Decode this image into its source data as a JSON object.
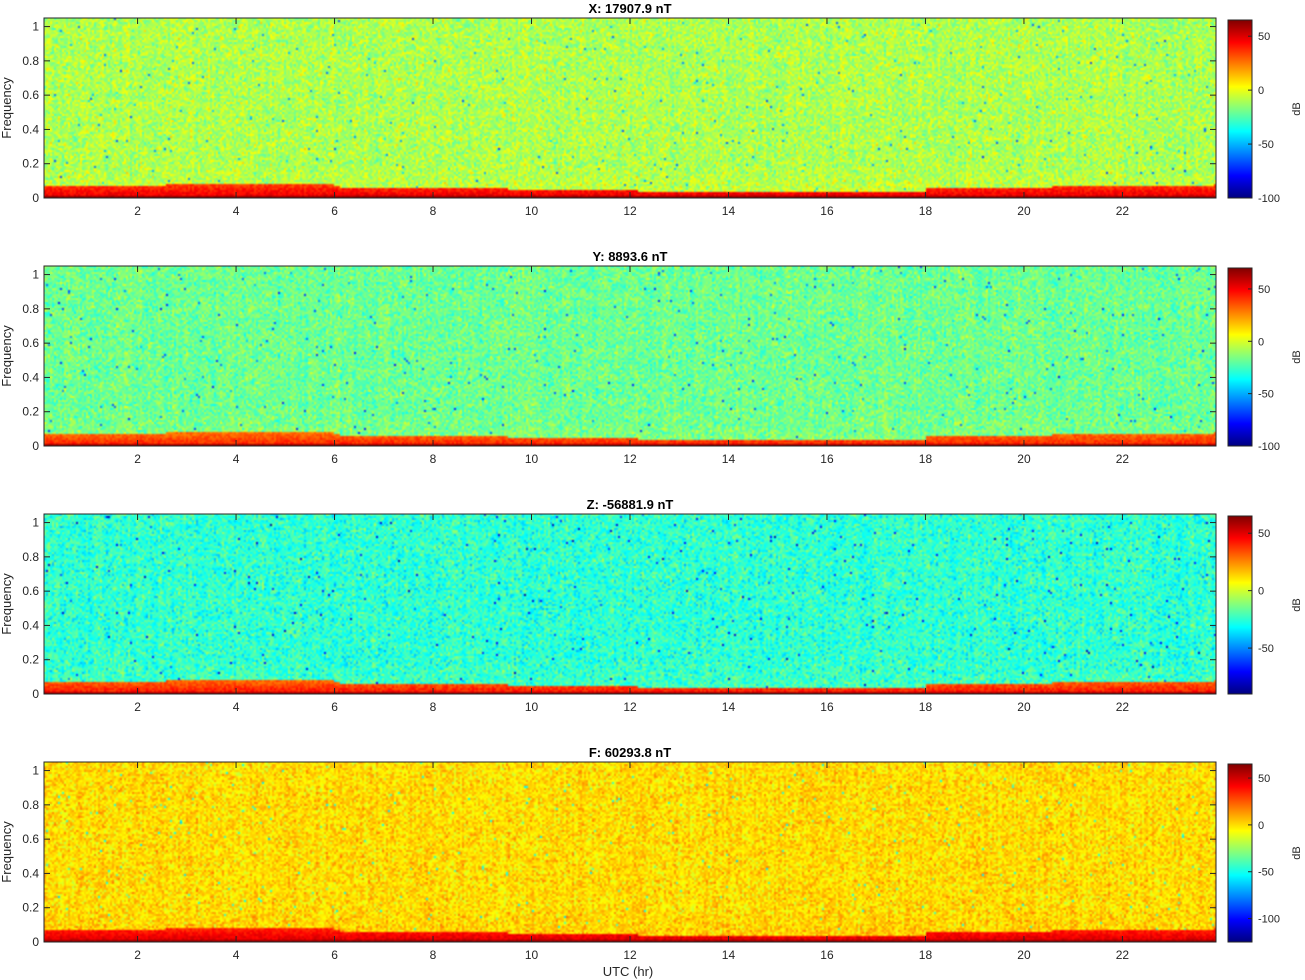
{
  "figure": {
    "xlabel": "UTC (hr)"
  },
  "chart_data": [
    {
      "type": "heatmap",
      "title": "X: 17907.9 nT",
      "xlabel": "",
      "ylabel": "Frequency",
      "xlim": [
        0.1,
        23.9
      ],
      "ylim": [
        0,
        1.05
      ],
      "xticks": [
        2,
        4,
        6,
        8,
        10,
        12,
        14,
        16,
        18,
        20,
        22
      ],
      "yticks": [
        0,
        0.2,
        0.4,
        0.6,
        0.8,
        1
      ],
      "colorbar": {
        "label": "dB",
        "range": [
          -100,
          65
        ],
        "ticks": [
          50,
          0,
          -50,
          -100
        ]
      },
      "colormap": "jet",
      "background_db": -10,
      "low_freq_band_db": 40,
      "bottom_line_db": 65
    },
    {
      "type": "heatmap",
      "title": "Y: 8893.6 nT",
      "xlabel": "",
      "ylabel": "Frequency",
      "xlim": [
        0.1,
        23.9
      ],
      "ylim": [
        0,
        1.05
      ],
      "xticks": [
        2,
        4,
        6,
        8,
        10,
        12,
        14,
        16,
        18,
        20,
        22
      ],
      "yticks": [
        0,
        0.2,
        0.4,
        0.6,
        0.8,
        1
      ],
      "colorbar": {
        "label": "dB",
        "range": [
          -100,
          70
        ],
        "ticks": [
          50,
          0,
          -50,
          -100
        ]
      },
      "colormap": "jet",
      "background_db": -18,
      "low_freq_band_db": 35,
      "bottom_line_db": 68
    },
    {
      "type": "heatmap",
      "title": "Z: -56881.9 nT",
      "xlabel": "",
      "ylabel": "Frequency",
      "xlim": [
        0.1,
        23.9
      ],
      "ylim": [
        0,
        1.05
      ],
      "xticks": [
        2,
        4,
        6,
        8,
        10,
        12,
        14,
        16,
        18,
        20,
        22
      ],
      "yticks": [
        0,
        0.2,
        0.4,
        0.6,
        0.8,
        1
      ],
      "colorbar": {
        "label": "dB",
        "range": [
          -90,
          65
        ],
        "ticks": [
          50,
          0,
          -50
        ]
      },
      "colormap": "jet",
      "background_db": -25,
      "low_freq_band_db": 35,
      "bottom_line_db": 62
    },
    {
      "type": "heatmap",
      "title": "F: 60293.8 nT",
      "xlabel": "UTC (hr)",
      "ylabel": "Frequency",
      "xlim": [
        0.1,
        23.9
      ],
      "ylim": [
        0,
        1.05
      ],
      "xticks": [
        2,
        4,
        6,
        8,
        10,
        12,
        14,
        16,
        18,
        20,
        22
      ],
      "yticks": [
        0,
        0.2,
        0.4,
        0.6,
        0.8,
        1
      ],
      "colorbar": {
        "label": "dB",
        "range": [
          -125,
          65
        ],
        "ticks": [
          50,
          0,
          -50,
          -100
        ]
      },
      "colormap": "jet",
      "background_db": 0,
      "low_freq_band_db": 40,
      "bottom_line_db": 63
    }
  ]
}
